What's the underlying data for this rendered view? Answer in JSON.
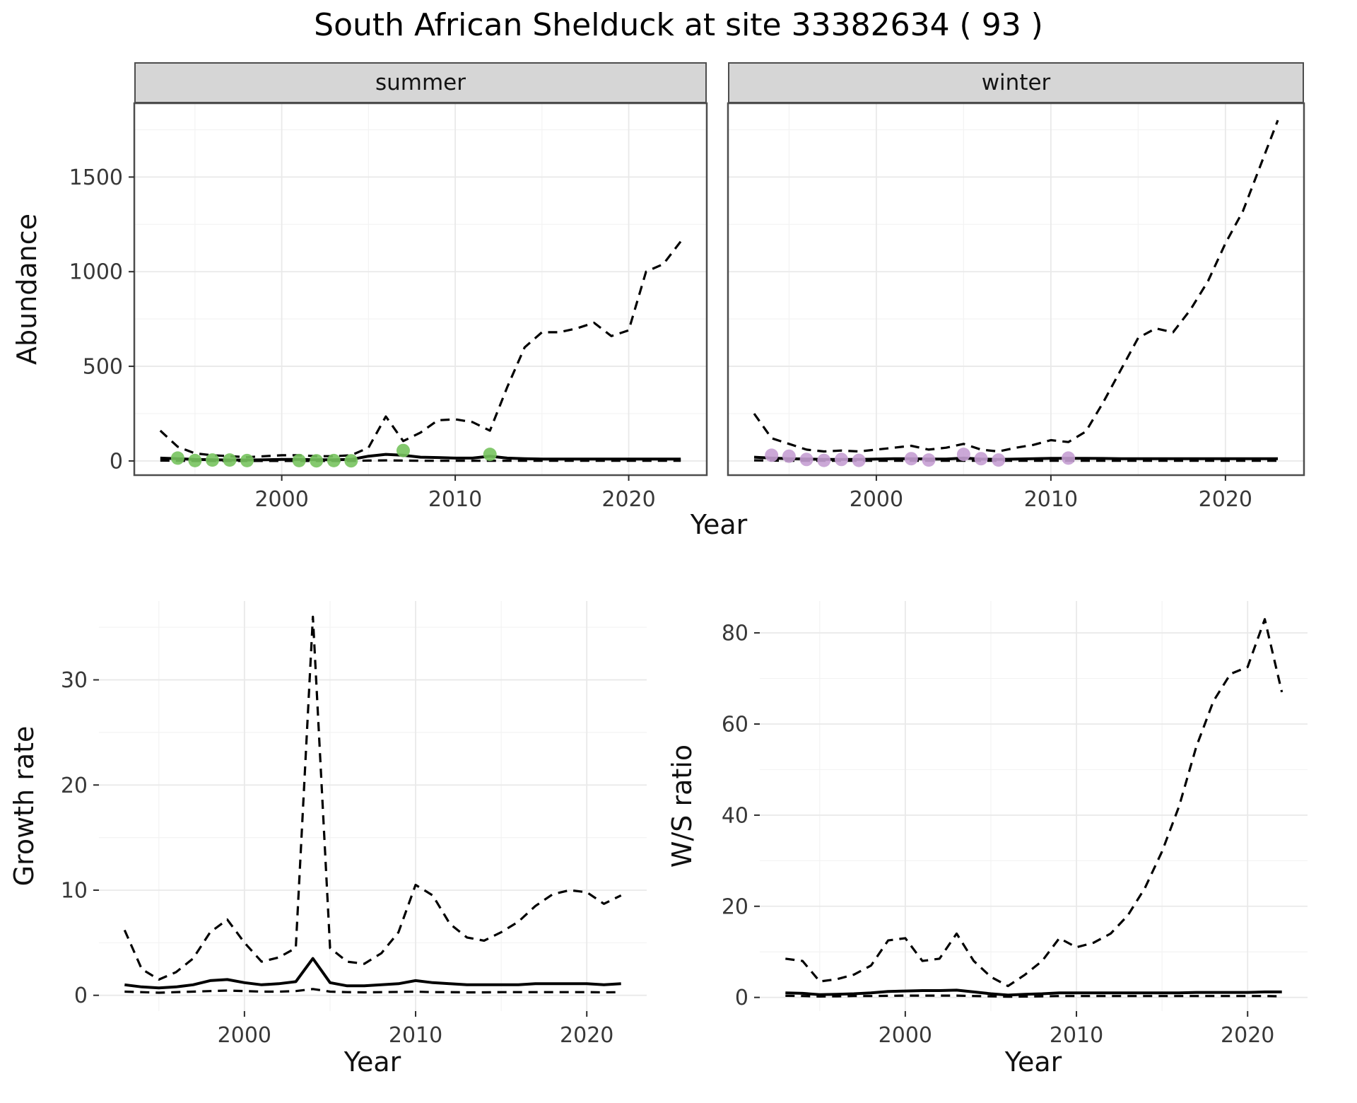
{
  "figure": {
    "title": "South African Shelduck at site 33382634 ( 93 )"
  },
  "facets": [
    {
      "label": "summer"
    },
    {
      "label": "winter"
    }
  ],
  "axes": {
    "abundance_ylabel": "Abundance",
    "top_xlabel": "Year",
    "growth_ylabel": "Growth rate",
    "growth_xlabel": "Year",
    "ws_ylabel": "W/S ratio",
    "ws_xlabel": "Year"
  },
  "style": {
    "summer_point_color": "#77c35e",
    "winter_point_color": "#c59fd3",
    "line_color": "#000000",
    "strip_fill": "#d6d6d6",
    "panel_border_color": "#4d4d4d",
    "grid_major_color": "#e9e9e9",
    "grid_minor_color": "#f3f3f3"
  },
  "chart_data": [
    {
      "id": "abundance-summer",
      "type": "line",
      "facet_label": "summer",
      "xlabel": "Year",
      "ylabel": "Abundance",
      "xlim": [
        1991.5,
        2024.5
      ],
      "ylim": [
        -75,
        1890
      ],
      "xticks": [
        2000,
        2010,
        2020
      ],
      "yticks": [
        0,
        500,
        1000,
        1500
      ],
      "show_yticklabels": true,
      "x": [
        1993,
        1994,
        1995,
        1996,
        1997,
        1998,
        1999,
        2000,
        2001,
        2002,
        2003,
        2004,
        2005,
        2006,
        2007,
        2008,
        2009,
        2010,
        2011,
        2012,
        2013,
        2014,
        2015,
        2016,
        2017,
        2018,
        2019,
        2020,
        2021,
        2022,
        2023
      ],
      "series": [
        {
          "name": "upper-ci",
          "style": "dashed",
          "y": [
            160,
            75,
            40,
            30,
            25,
            20,
            25,
            30,
            30,
            25,
            25,
            30,
            70,
            235,
            105,
            150,
            215,
            220,
            205,
            160,
            390,
            600,
            680,
            680,
            700,
            730,
            660,
            690,
            1000,
            1040,
            1160
          ]
        },
        {
          "name": "mean",
          "style": "solid",
          "y": [
            15,
            12,
            8,
            6,
            5,
            5,
            6,
            8,
            8,
            6,
            6,
            8,
            25,
            35,
            30,
            20,
            18,
            15,
            15,
            25,
            15,
            12,
            10,
            10,
            10,
            10,
            10,
            10,
            10,
            10,
            10
          ]
        },
        {
          "name": "lower-ci",
          "style": "dashed",
          "y": [
            2,
            1,
            0,
            0,
            0,
            0,
            0,
            0,
            0,
            0,
            0,
            0,
            2,
            3,
            2,
            1,
            1,
            1,
            1,
            1,
            1,
            1,
            1,
            1,
            1,
            1,
            1,
            1,
            1,
            1,
            1
          ]
        }
      ],
      "points": {
        "name": "observed-counts",
        "color": "#77c35e",
        "x": [
          1994,
          1995,
          1996,
          1997,
          1998,
          2001,
          2002,
          2003,
          2004,
          2007,
          2012
        ],
        "y": [
          15,
          2,
          5,
          5,
          2,
          2,
          1,
          2,
          1,
          55,
          35
        ]
      }
    },
    {
      "id": "abundance-winter",
      "type": "line",
      "facet_label": "winter",
      "xlabel": "Year",
      "ylabel": "Abundance",
      "xlim": [
        1991.5,
        2024.5
      ],
      "ylim": [
        -75,
        1890
      ],
      "xticks": [
        2000,
        2010,
        2020
      ],
      "yticks": [
        0,
        500,
        1000,
        1500
      ],
      "show_yticklabels": false,
      "x": [
        1993,
        1994,
        1995,
        1996,
        1997,
        1998,
        1999,
        2000,
        2001,
        2002,
        2003,
        2004,
        2005,
        2006,
        2007,
        2008,
        2009,
        2010,
        2011,
        2012,
        2013,
        2014,
        2015,
        2016,
        2017,
        2018,
        2019,
        2020,
        2021,
        2022,
        2023
      ],
      "series": [
        {
          "name": "upper-ci",
          "style": "dashed",
          "y": [
            250,
            120,
            90,
            60,
            50,
            55,
            50,
            60,
            70,
            80,
            60,
            70,
            90,
            60,
            50,
            70,
            85,
            110,
            100,
            155,
            310,
            480,
            650,
            700,
            680,
            800,
            950,
            1150,
            1320,
            1560,
            1800
          ]
        },
        {
          "name": "mean",
          "style": "solid",
          "y": [
            20,
            15,
            12,
            10,
            8,
            8,
            8,
            10,
            12,
            12,
            10,
            10,
            15,
            10,
            8,
            10,
            12,
            14,
            14,
            14,
            13,
            12,
            12,
            12,
            12,
            12,
            12,
            12,
            12,
            12,
            12
          ]
        },
        {
          "name": "lower-ci",
          "style": "dashed",
          "y": [
            3,
            2,
            1,
            1,
            1,
            1,
            1,
            1,
            1,
            1,
            1,
            1,
            1,
            1,
            1,
            1,
            1,
            1,
            1,
            1,
            1,
            1,
            1,
            1,
            1,
            1,
            1,
            1,
            1,
            1,
            1
          ]
        }
      ],
      "points": {
        "name": "observed-counts",
        "color": "#c59fd3",
        "x": [
          1994,
          1995,
          1996,
          1997,
          1998,
          1999,
          2002,
          2003,
          2005,
          2006,
          2007,
          2011
        ],
        "y": [
          30,
          25,
          8,
          3,
          8,
          3,
          12,
          5,
          35,
          12,
          5,
          15
        ]
      }
    },
    {
      "id": "growth-rate",
      "type": "line",
      "facet_label": "",
      "xlabel": "Year",
      "ylabel": "Growth rate",
      "xlim": [
        1991.5,
        2023.5
      ],
      "ylim": [
        -1.5,
        37.5
      ],
      "xticks": [
        2000,
        2010,
        2020
      ],
      "yticks": [
        0,
        10,
        20,
        30
      ],
      "show_yticklabels": true,
      "x": [
        1993,
        1994,
        1995,
        1996,
        1997,
        1998,
        1999,
        2000,
        2001,
        2002,
        2003,
        2004,
        2005,
        2006,
        2007,
        2008,
        2009,
        2010,
        2011,
        2012,
        2013,
        2014,
        2015,
        2016,
        2017,
        2018,
        2019,
        2020,
        2021,
        2022
      ],
      "series": [
        {
          "name": "upper-ci",
          "style": "dashed",
          "y": [
            6.2,
            2.5,
            1.5,
            2.2,
            3.5,
            6.0,
            7.2,
            5.0,
            3.2,
            3.6,
            4.5,
            36.0,
            4.5,
            3.2,
            3.0,
            4.0,
            6.0,
            10.5,
            9.5,
            6.8,
            5.5,
            5.2,
            6.0,
            7.0,
            8.5,
            9.6,
            10.0,
            9.8,
            8.7,
            9.5
          ]
        },
        {
          "name": "mean",
          "style": "solid",
          "y": [
            1.0,
            0.8,
            0.7,
            0.8,
            1.0,
            1.4,
            1.5,
            1.2,
            1.0,
            1.1,
            1.3,
            3.5,
            1.2,
            0.9,
            0.9,
            1.0,
            1.1,
            1.4,
            1.2,
            1.1,
            1.0,
            1.0,
            1.0,
            1.0,
            1.1,
            1.1,
            1.1,
            1.1,
            1.0,
            1.1
          ]
        },
        {
          "name": "lower-ci",
          "style": "dashed",
          "y": [
            0.35,
            0.3,
            0.25,
            0.3,
            0.35,
            0.4,
            0.45,
            0.4,
            0.35,
            0.35,
            0.4,
            0.6,
            0.35,
            0.3,
            0.28,
            0.3,
            0.32,
            0.35,
            0.3,
            0.3,
            0.28,
            0.28,
            0.3,
            0.3,
            0.3,
            0.3,
            0.3,
            0.3,
            0.28,
            0.3
          ]
        }
      ],
      "points": null
    },
    {
      "id": "ws-ratio",
      "type": "line",
      "facet_label": "",
      "xlabel": "Year",
      "ylabel": "W/S ratio",
      "xlim": [
        1991.5,
        2023.5
      ],
      "ylim": [
        -3,
        87
      ],
      "xticks": [
        2000,
        2010,
        2020
      ],
      "yticks": [
        0,
        20,
        40,
        60,
        80
      ],
      "show_yticklabels": true,
      "x": [
        1993,
        1994,
        1995,
        1996,
        1997,
        1998,
        1999,
        2000,
        2001,
        2002,
        2003,
        2004,
        2005,
        2006,
        2007,
        2008,
        2009,
        2010,
        2011,
        2012,
        2013,
        2014,
        2015,
        2016,
        2017,
        2018,
        2019,
        2020,
        2021,
        2022
      ],
      "series": [
        {
          "name": "upper-ci",
          "style": "dashed",
          "y": [
            8.5,
            8.0,
            3.5,
            4.0,
            5.0,
            7.0,
            12.5,
            13.0,
            8.0,
            8.5,
            14.0,
            8.0,
            4.5,
            2.5,
            5.0,
            8.0,
            13.0,
            11.0,
            12.0,
            14.0,
            18.0,
            24.0,
            32.0,
            42.0,
            55.0,
            65.0,
            71.0,
            72.5,
            83.0,
            67.0
          ]
        },
        {
          "name": "mean",
          "style": "solid",
          "y": [
            1.0,
            0.9,
            0.6,
            0.7,
            0.8,
            1.0,
            1.3,
            1.4,
            1.5,
            1.5,
            1.6,
            1.2,
            0.8,
            0.5,
            0.7,
            0.8,
            1.0,
            1.0,
            1.0,
            1.0,
            1.0,
            1.0,
            1.0,
            1.0,
            1.1,
            1.1,
            1.1,
            1.1,
            1.2,
            1.2
          ]
        },
        {
          "name": "lower-ci",
          "style": "dashed",
          "y": [
            0.35,
            0.3,
            0.2,
            0.25,
            0.3,
            0.3,
            0.35,
            0.4,
            0.4,
            0.4,
            0.4,
            0.3,
            0.25,
            0.15,
            0.2,
            0.25,
            0.3,
            0.3,
            0.3,
            0.3,
            0.3,
            0.3,
            0.3,
            0.3,
            0.3,
            0.3,
            0.3,
            0.3,
            0.3,
            0.25
          ]
        }
      ],
      "points": null
    }
  ]
}
